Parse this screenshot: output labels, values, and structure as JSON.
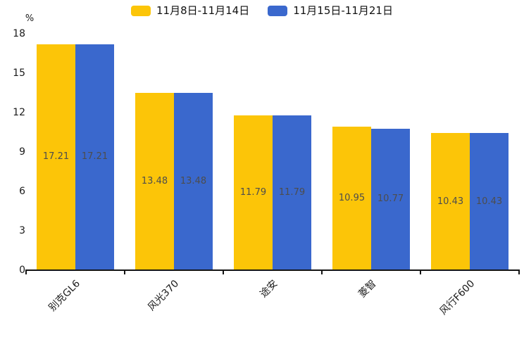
{
  "chart_data": {
    "type": "bar",
    "title": "",
    "xlabel": "",
    "ylabel": "%",
    "categories": [
      "别克GL6",
      "风光370",
      "途安",
      "菱智",
      "风行F600"
    ],
    "series": [
      {
        "name": "11月8日-11月14日",
        "color": "#FCC508",
        "values": [
          17.21,
          13.48,
          11.79,
          10.95,
          10.43
        ]
      },
      {
        "name": "11月15日-11月21日",
        "color": "#3A68CD",
        "values": [
          17.21,
          13.48,
          11.79,
          10.77,
          10.43
        ]
      }
    ],
    "value_labels": [
      "17.21",
      "13.48",
      "11.79",
      "10.95",
      "10.43",
      "17.21",
      "13.48",
      "11.79",
      "10.77",
      "10.43"
    ],
    "ylim": [
      0,
      18
    ],
    "yticks": [
      0,
      3,
      6,
      9,
      12,
      15,
      18
    ],
    "grid": false,
    "legend_position": "top",
    "value_label_color": "#4d4d4d",
    "axis_color": "#141414"
  }
}
